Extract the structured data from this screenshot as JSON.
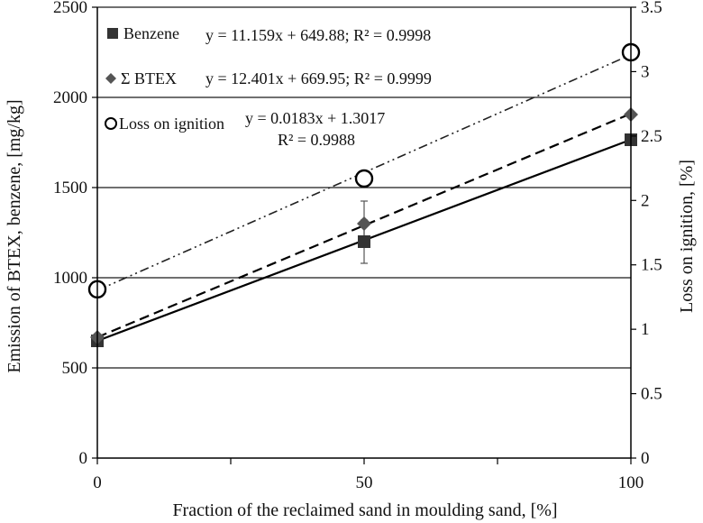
{
  "chart_data": {
    "type": "scatter",
    "title": "",
    "xlabel": "Fraction of  the reclaimed sand in moulding sand, [%]",
    "ylabel_left": "Emission of  BTEX, benzene,  [mg/kg]",
    "ylabel_right": "Loss on ignition, [%]",
    "xlim": [
      0,
      100
    ],
    "ylim_left": [
      0,
      2500
    ],
    "ylim_right": [
      0,
      3.5
    ],
    "x_ticks": [
      0,
      50,
      100
    ],
    "y_ticks_left": [
      "0",
      "500",
      "1000",
      "1500",
      "2000",
      "2500"
    ],
    "y_ticks_right": [
      "0",
      "0.5",
      "1",
      "1.5",
      "2",
      "2.5",
      "3",
      "3.5"
    ],
    "grid": "horizontal",
    "legend_position": "top-left",
    "series": [
      {
        "name": "Benzene",
        "axis": "left",
        "marker": "square",
        "line_style": "solid",
        "color": "#333333",
        "x": [
          0,
          50,
          100
        ],
        "y": [
          650,
          1200,
          1765
        ],
        "error": [
          0,
          120,
          0
        ],
        "equation": "y = 11.159x + 649.88; R² = 0.9998",
        "trend": {
          "slope": 11.159,
          "intercept": 649.88
        }
      },
      {
        "name": "Σ BTEX",
        "axis": "left",
        "marker": "diamond",
        "line_style": "dashed",
        "color": "#555555",
        "x": [
          0,
          50,
          100
        ],
        "y": [
          670,
          1300,
          1905
        ],
        "error": [
          0,
          125,
          0
        ],
        "equation": "y = 12.401x + 669.95; R² = 0.9999",
        "trend": {
          "slope": 12.401,
          "intercept": 669.95
        }
      },
      {
        "name": "Loss on ignition",
        "axis": "right",
        "marker": "circle-open",
        "line_style": "dash-dot-dot",
        "color": "#000000",
        "x": [
          0,
          50,
          100
        ],
        "y": [
          1.31,
          2.17,
          3.15
        ],
        "error": [
          0,
          0,
          0
        ],
        "equation_line1": "y = 0.0183x + 1.3017",
        "equation_line2": "R² = 0.9988",
        "trend": {
          "slope": 0.0183,
          "intercept": 1.3017
        }
      }
    ]
  }
}
